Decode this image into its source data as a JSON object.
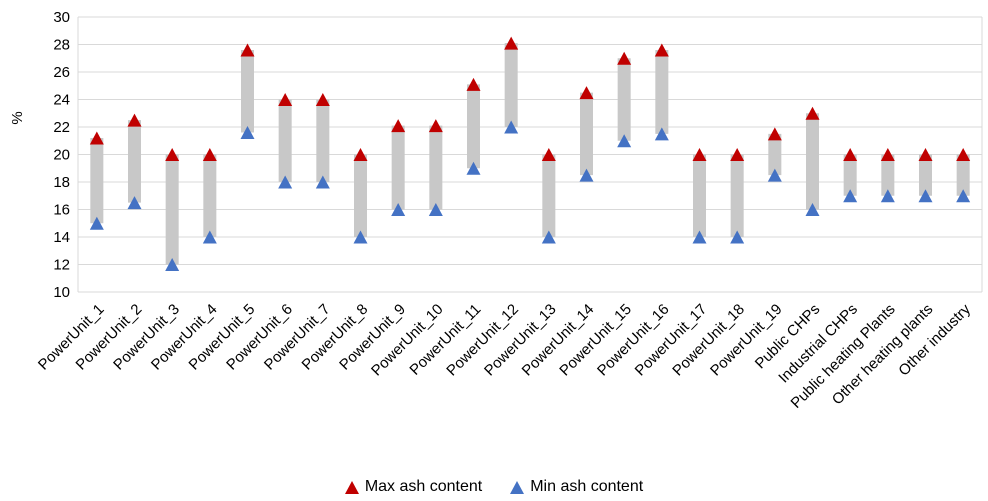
{
  "chart_data": {
    "type": "range",
    "ylabel": "%",
    "ylim": [
      10,
      30
    ],
    "yticks": [
      10,
      12,
      14,
      16,
      18,
      20,
      22,
      24,
      26,
      28,
      30
    ],
    "grid": true,
    "legend_position": "bottom",
    "categories": [
      "PowerUnit_1",
      "PowerUnit_2",
      "PowerUnit_3",
      "PowerUnit_4",
      "PowerUnit_5",
      "PowerUnit_6",
      "PowerUnit_7",
      "PowerUnit_8",
      "PowerUnit_9",
      "PowerUnit_10",
      "PowerUnit_11",
      "PowerUnit_12",
      "PowerUnit_13",
      "PowerUnit_14",
      "PowerUnit_15",
      "PowerUnit_16",
      "PowerUnit_17",
      "PowerUnit_18",
      "PowerUnit_19",
      "Public CHPs",
      "Industrial CHPs",
      "Public heating Plants",
      "Other heating plants",
      "Other industry"
    ],
    "series": [
      {
        "name": "Max ash content",
        "color": "#c00000",
        "marker": "triangle",
        "values": [
          21.2,
          22.5,
          20,
          20,
          27.6,
          24,
          24,
          20,
          22.1,
          22.1,
          25.1,
          28.1,
          20,
          24.5,
          27,
          27.6,
          20,
          20,
          21.5,
          23,
          20,
          20,
          20,
          20
        ]
      },
      {
        "name": "Min ash content",
        "color": "#4472c4",
        "marker": "triangle",
        "values": [
          15,
          16.5,
          12,
          14,
          21.6,
          18,
          18,
          14,
          16,
          16,
          19,
          22,
          14,
          18.5,
          21,
          21.5,
          14,
          14,
          18.5,
          16,
          17,
          17,
          17,
          17
        ]
      }
    ],
    "range_bar_color": "#c8c8c8"
  }
}
